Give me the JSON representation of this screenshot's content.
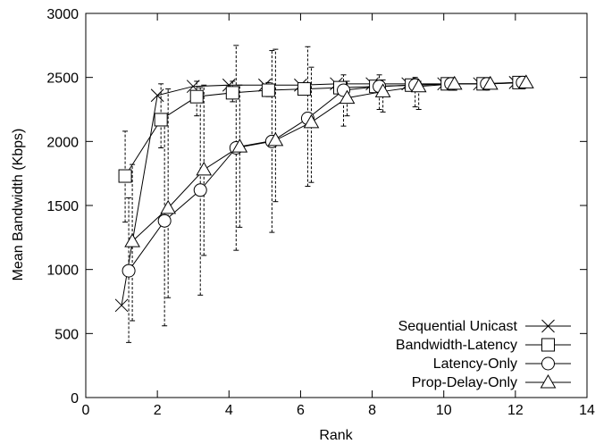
{
  "chart_data": {
    "type": "line",
    "title": "",
    "xlabel": "Rank",
    "ylabel": "Mean Bandwidth (Kbps)",
    "xlim": [
      0,
      14
    ],
    "ylim": [
      0,
      3000
    ],
    "xticks": [
      0,
      2,
      4,
      6,
      8,
      10,
      12,
      14
    ],
    "yticks": [
      0,
      500,
      1000,
      1500,
      2000,
      2500,
      3000
    ],
    "grid": false,
    "legend_position": "bottom-right",
    "series": [
      {
        "name": "Sequential Unicast",
        "marker": "x",
        "x": [
          1,
          2,
          3,
          4,
          5,
          6,
          7,
          8,
          9,
          10,
          11,
          12
        ],
        "y": [
          720,
          2360,
          2430,
          2440,
          2440,
          2440,
          2450,
          2450,
          2450,
          2450,
          2450,
          2460
        ],
        "err_low": [],
        "err_high": []
      },
      {
        "name": "Bandwidth-Latency",
        "marker": "square",
        "x": [
          1.1,
          2.1,
          3.1,
          4.1,
          5.1,
          6.1,
          7.1,
          8.1,
          9.1,
          10.1,
          11.1,
          12.1
        ],
        "y": [
          1730,
          2170,
          2350,
          2380,
          2400,
          2410,
          2420,
          2430,
          2440,
          2450,
          2450,
          2460
        ],
        "err_low": [
          1370,
          1950,
          2200,
          2310,
          2350,
          2380,
          2390,
          2420,
          2430,
          2440,
          2450,
          2455
        ],
        "err_high": [
          2080,
          2450,
          2470,
          2470,
          2460,
          2450,
          2450,
          2450,
          2450,
          2450,
          2455,
          2465
        ]
      },
      {
        "name": "Latency-Only",
        "marker": "circle",
        "x": [
          1.2,
          2.2,
          3.2,
          4.2,
          5.2,
          6.2,
          7.2,
          8.2,
          9.2,
          10.2,
          11.2,
          12.2
        ],
        "y": [
          990,
          1380,
          1620,
          1950,
          2000,
          2180,
          2400,
          2430,
          2440,
          2450,
          2450,
          2460
        ],
        "err_low": [
          430,
          560,
          800,
          1150,
          1290,
          1650,
          2120,
          2250,
          2270,
          2400,
          2440,
          2455
        ],
        "err_high": [
          1560,
          2200,
          2420,
          2750,
          2710,
          2740,
          2520,
          2520,
          2500,
          2480,
          2460,
          2465
        ]
      },
      {
        "name": "Prop-Delay-Only",
        "marker": "triangle",
        "x": [
          1.3,
          2.3,
          3.3,
          4.3,
          5.3,
          6.3,
          7.3,
          8.3,
          9.3,
          10.3,
          11.3,
          12.3
        ],
        "y": [
          1220,
          1480,
          1780,
          1960,
          2010,
          2150,
          2340,
          2390,
          2430,
          2450,
          2450,
          2460
        ],
        "err_low": [
          600,
          780,
          1110,
          1330,
          1530,
          1680,
          2200,
          2230,
          2250,
          2400,
          2440,
          2455
        ],
        "err_high": [
          1820,
          2410,
          2440,
          2440,
          2720,
          2580,
          2470,
          2480,
          2470,
          2470,
          2460,
          2465
        ]
      }
    ]
  }
}
